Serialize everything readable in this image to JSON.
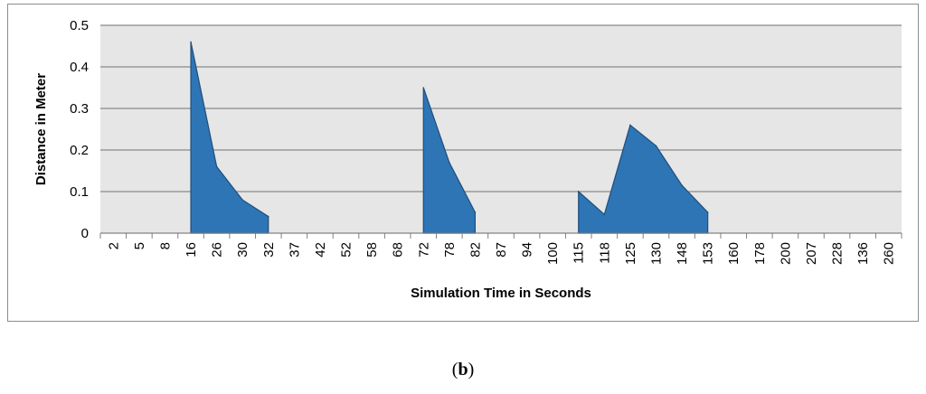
{
  "chart_data": {
    "type": "area",
    "title": "",
    "xlabel": "Simulation Time in Seconds",
    "ylabel": "Distance in Meter",
    "categories": [
      "2",
      "5",
      "8",
      "16",
      "26",
      "30",
      "32",
      "37",
      "42",
      "52",
      "58",
      "68",
      "72",
      "78",
      "82",
      "87",
      "94",
      "100",
      "115",
      "118",
      "125",
      "130",
      "148",
      "153",
      "160",
      "178",
      "200",
      "207",
      "228",
      "136",
      "260"
    ],
    "values": [
      0,
      0,
      0,
      0.46,
      0.16,
      0.08,
      0.04,
      0,
      0,
      0,
      0,
      0,
      0.35,
      0.17,
      0.05,
      0,
      0,
      0,
      0.1,
      0.045,
      0.26,
      0.21,
      0.115,
      0.05,
      0,
      0,
      0,
      0,
      0,
      0,
      0
    ],
    "ylim": [
      0,
      0.5
    ],
    "yticks": [
      "0",
      "0.1",
      "0.2",
      "0.3",
      "0.4",
      "0.5"
    ],
    "grid": true,
    "colors": {
      "fill": "#2e75b6",
      "stroke": "#1f4e79",
      "plot_bg": "#e6e6e6",
      "grid": "#8a8a8a"
    }
  },
  "caption": {
    "open": "(",
    "letter": "b",
    "close": ")"
  }
}
